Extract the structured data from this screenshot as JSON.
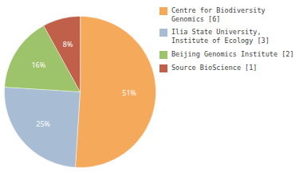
{
  "chart_data": {
    "type": "pie",
    "categories": [
      "Centre for Biodiversity\nGenomics [6]",
      "Ilia State University,\nInstitute of Ecology [3]",
      "Beijing Genomics Institute [2]",
      "Source BioScience [1]"
    ],
    "values": [
      51,
      25,
      16,
      8
    ],
    "value_labels": [
      "51%",
      "25%",
      "16%",
      "8%"
    ],
    "colors": [
      "#F5A95B",
      "#A8BDD4",
      "#9DC46B",
      "#C0604A"
    ],
    "data_labels": true,
    "legend": "right"
  }
}
